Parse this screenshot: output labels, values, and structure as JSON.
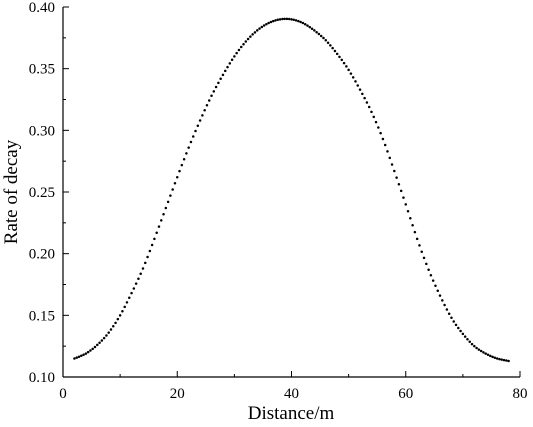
{
  "chart_data": {
    "type": "scatter",
    "title": "",
    "xlabel": "Distance/m",
    "ylabel": "Rate of decay",
    "xlim": [
      0,
      80
    ],
    "ylim": [
      0.1,
      0.4
    ],
    "x_ticks": [
      0,
      20,
      40,
      60,
      80
    ],
    "x_tick_labels": [
      "0",
      "20",
      "40",
      "60",
      "80"
    ],
    "y_ticks": [
      0.1,
      0.15,
      0.2,
      0.25,
      0.3,
      0.35,
      0.4
    ],
    "y_tick_labels": [
      "0.10",
      "0.15",
      "0.20",
      "0.25",
      "0.30",
      "0.35",
      "0.40"
    ],
    "grid": false,
    "legend": "none",
    "marker_color": "#000000",
    "series": [
      {
        "x": [
          2,
          4,
          6,
          8,
          10,
          12,
          14,
          16,
          18,
          20,
          22,
          24,
          26,
          28,
          30,
          32,
          34,
          36,
          38,
          40,
          42,
          44,
          46,
          48,
          50,
          52,
          54,
          56,
          58,
          60,
          62,
          64,
          66,
          68,
          70,
          72,
          74,
          76,
          78
        ],
        "y": [
          0.115,
          0.119,
          0.126,
          0.136,
          0.15,
          0.168,
          0.188,
          0.212,
          0.237,
          0.262,
          0.286,
          0.308,
          0.328,
          0.345,
          0.36,
          0.372,
          0.381,
          0.387,
          0.39,
          0.39,
          0.387,
          0.381,
          0.373,
          0.362,
          0.349,
          0.333,
          0.315,
          0.293,
          0.267,
          0.24,
          0.212,
          0.187,
          0.166,
          0.148,
          0.135,
          0.125,
          0.119,
          0.115,
          0.113
        ]
      }
    ]
  }
}
